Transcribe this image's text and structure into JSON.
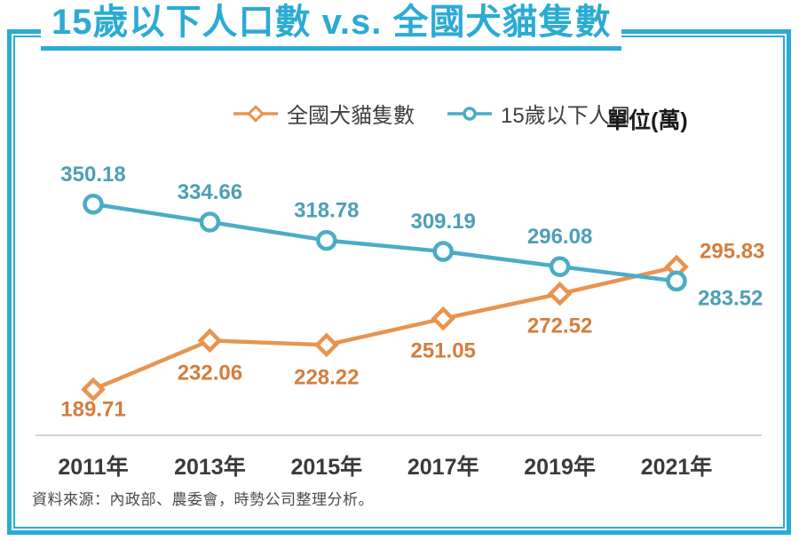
{
  "title": "15歲以下人口數 v.s. 全國犬貓隻數",
  "legend": {
    "series1_label": "全國犬貓隻數",
    "series2_label": "15歲以下人口",
    "unit_label": "單位(萬)"
  },
  "source_note": "資料來源：內政部、農委會，時勢公司整理分析。",
  "colors": {
    "accent": "#2BABD4",
    "orange_line": "#E8944F",
    "orange_label": "#D77C3C",
    "teal_line": "#4BACC6",
    "teal_label": "#4C9FB5",
    "axis_line": "#C6C6C6",
    "tick_text": "#3A3A3A",
    "legend_text": "#3F3F3F",
    "unit_text": "#1A1A1A",
    "source_text": "#4A4A4A"
  },
  "chart_data": {
    "type": "line",
    "title": "15歲以下人口數 v.s. 全國犬貓隻數",
    "categories": [
      "2011年",
      "2013年",
      "2015年",
      "2017年",
      "2019年",
      "2021年"
    ],
    "series": [
      {
        "name": "全國犬貓隻數",
        "marker": "diamond",
        "color": "#E8944F",
        "label_color": "#D77C3C",
        "values": [
          189.71,
          232.06,
          228.22,
          251.05,
          272.52,
          295.83
        ],
        "label_position": "below"
      },
      {
        "name": "15歲以下人口",
        "marker": "circle",
        "color": "#4BACC6",
        "label_color": "#4C9FB5",
        "values": [
          350.18,
          334.66,
          318.78,
          309.19,
          296.08,
          283.52
        ],
        "label_position": "above"
      }
    ],
    "unit": "單位(萬)",
    "xlabel": "",
    "ylabel": "",
    "ylim": [
      150,
      360
    ],
    "grid": false,
    "legend_position": "top",
    "data_labels": true
  }
}
